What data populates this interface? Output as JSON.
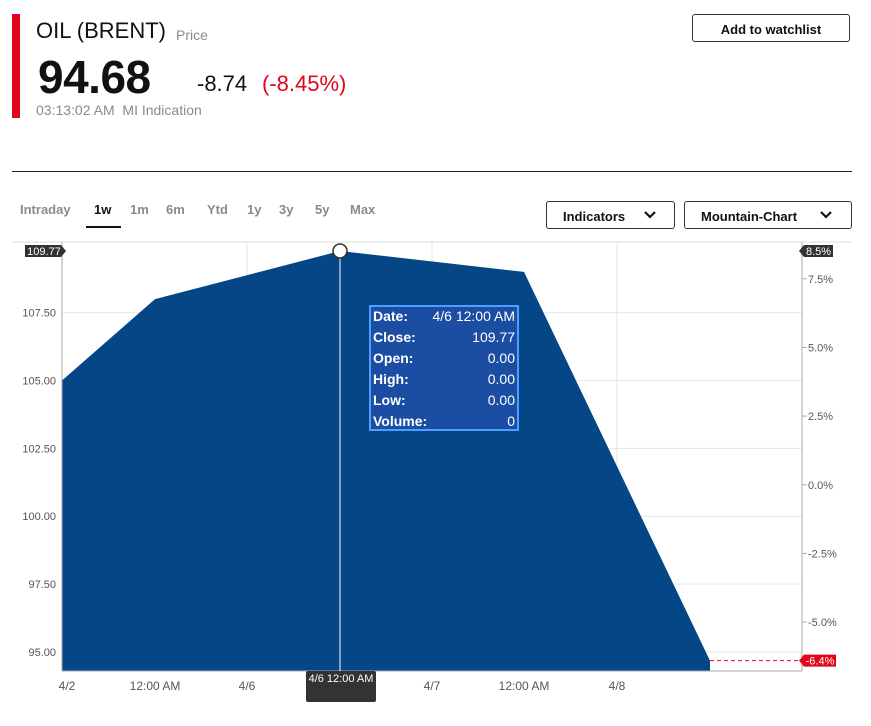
{
  "header": {
    "name": "OIL (BRENT)",
    "name_sub": "Price",
    "price": "94.68",
    "change": "-8.74",
    "change_pct": "(-8.45%)",
    "time": "03:13:02 AM",
    "source": "MI Indication",
    "watchlist_label": "Add to watchlist"
  },
  "tabs": [
    "Intraday",
    "1w",
    "1m",
    "6m",
    "Ytd",
    "1y",
    "3y",
    "5y",
    "Max"
  ],
  "active_tab": "1w",
  "controls": {
    "indicators_label": "Indicators",
    "chart_type_label": "Mountain-Chart",
    "chevron_icon": "chevron-down-icon"
  },
  "tooltip": {
    "rows": [
      {
        "k": "Date:",
        "v": "4/6 12:00 AM"
      },
      {
        "k": "Close:",
        "v": "109.77"
      },
      {
        "k": "Open:",
        "v": "0.00"
      },
      {
        "k": "High:",
        "v": "0.00"
      },
      {
        "k": "Low:",
        "v": "0.00"
      },
      {
        "k": "Volume:",
        "v": "0"
      }
    ]
  },
  "crosshair_label": "4/6 12:00 AM",
  "colors": {
    "accent_red": "#e1061b",
    "area_fill": "#044686",
    "tooltip_bg": "#1b4da3",
    "tooltip_border": "#4f9dff"
  },
  "chart_data": {
    "type": "area",
    "x": [
      "4/2 12:00 PM",
      "4/5 12:00 AM",
      "4/6 12:00 AM",
      "4/7 12:00 AM",
      "4/8 12:00 PM"
    ],
    "values": [
      105.0,
      108.0,
      109.77,
      109.0,
      94.68
    ],
    "ylim": [
      94.3,
      109.77
    ],
    "yticks": [
      95.0,
      97.5,
      100.0,
      102.5,
      105.0,
      107.5
    ],
    "ytick_labels": [
      "95.00",
      "97.50",
      "100.00",
      "102.50",
      "105.00",
      "107.50"
    ],
    "y_high_badge": "109.77",
    "pct_ticks": [
      7.5,
      5.0,
      2.5,
      0.0,
      -2.5,
      -5.0
    ],
    "pct_tick_labels": [
      "7.5%",
      "5.0%",
      "2.5%",
      "0.0%",
      "-2.5%",
      "-5.0%"
    ],
    "pct_high_badge": "8.5%",
    "pct_last_badge": "-6.4%",
    "xtick_labels": [
      "4/2",
      "12:00 AM",
      "4/6",
      "4/7",
      "12:00 AM",
      "4/8"
    ],
    "grid": true
  }
}
